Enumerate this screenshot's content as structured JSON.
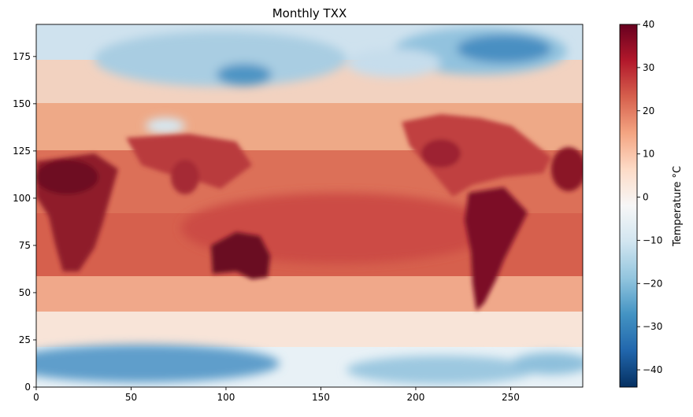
{
  "chart_data": {
    "type": "heatmap",
    "title": "Monthly TXX",
    "xlabel": "",
    "ylabel": "",
    "xlim": [
      0,
      288
    ],
    "ylim": [
      0,
      192
    ],
    "x_ticks": [
      0,
      50,
      100,
      150,
      200,
      250
    ],
    "y_ticks": [
      0,
      25,
      50,
      75,
      100,
      125,
      150,
      175
    ],
    "colorbar": {
      "label": "Temperature °C",
      "range": [
        -44,
        40
      ],
      "ticks": [
        40,
        30,
        20,
        10,
        0,
        -10,
        -20,
        -30,
        -40
      ],
      "colormap": "RdBu_r",
      "colors": [
        "#053061",
        "#2166ac",
        "#4393c3",
        "#92c5de",
        "#d1e5f0",
        "#f7f7f7",
        "#fddbc7",
        "#f4a582",
        "#d6604d",
        "#b2182b",
        "#67001f"
      ]
    },
    "grid": false
  }
}
